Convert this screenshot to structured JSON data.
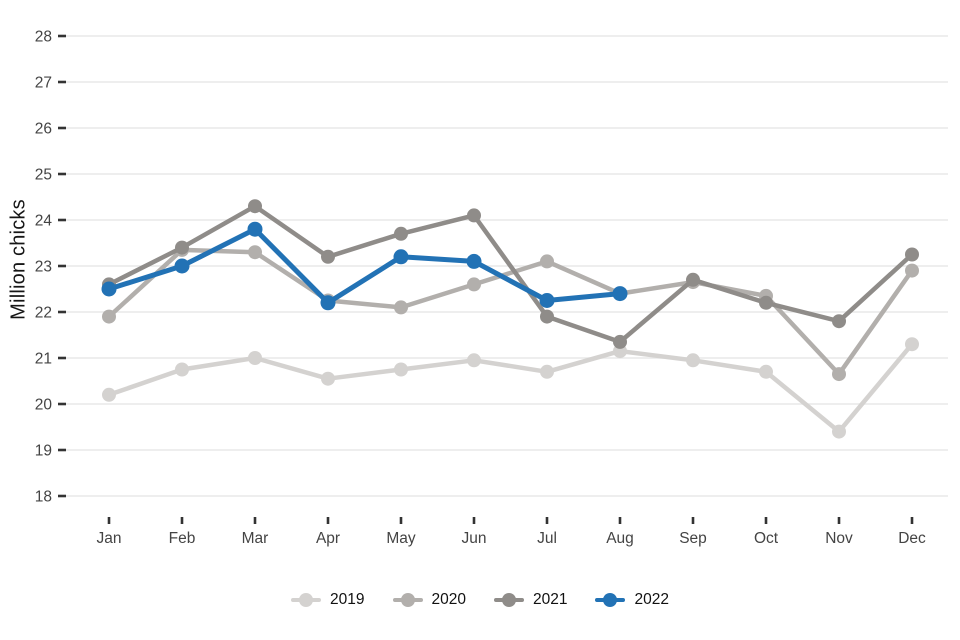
{
  "chart_data": {
    "type": "line",
    "title": "",
    "xlabel": "",
    "ylabel": "Million chicks",
    "categories": [
      "Jan",
      "Feb",
      "Mar",
      "Apr",
      "May",
      "Jun",
      "Jul",
      "Aug",
      "Sep",
      "Oct",
      "Nov",
      "Dec"
    ],
    "y_ticks": [
      28,
      27,
      26,
      25,
      24,
      23,
      22,
      21,
      20,
      19,
      18
    ],
    "ylim": [
      17.6,
      28.4
    ],
    "grid": "horizontal",
    "legend_position": "bottom-center",
    "axis_text_color": "#444444",
    "tick_mark_color": "#333333",
    "gridline_color": "#e8e8e8",
    "series": [
      {
        "name": "2019",
        "color": "#d4d2d0",
        "values": [
          20.2,
          20.75,
          21.0,
          20.55,
          20.75,
          20.95,
          20.7,
          21.15,
          20.95,
          20.7,
          19.4,
          21.3
        ]
      },
      {
        "name": "2020",
        "color": "#b2afac",
        "values": [
          21.9,
          23.35,
          23.3,
          22.25,
          22.1,
          22.6,
          23.1,
          22.4,
          22.65,
          22.35,
          20.65,
          22.9
        ]
      },
      {
        "name": "2021",
        "color": "#8f8c89",
        "values": [
          22.6,
          23.4,
          24.3,
          23.2,
          23.7,
          24.1,
          21.9,
          21.35,
          22.7,
          22.2,
          21.8,
          23.25
        ]
      },
      {
        "name": "2022",
        "color": "#2272b5",
        "values": [
          22.5,
          23.0,
          23.8,
          22.2,
          23.2,
          23.1,
          22.25,
          22.4
        ]
      }
    ]
  }
}
